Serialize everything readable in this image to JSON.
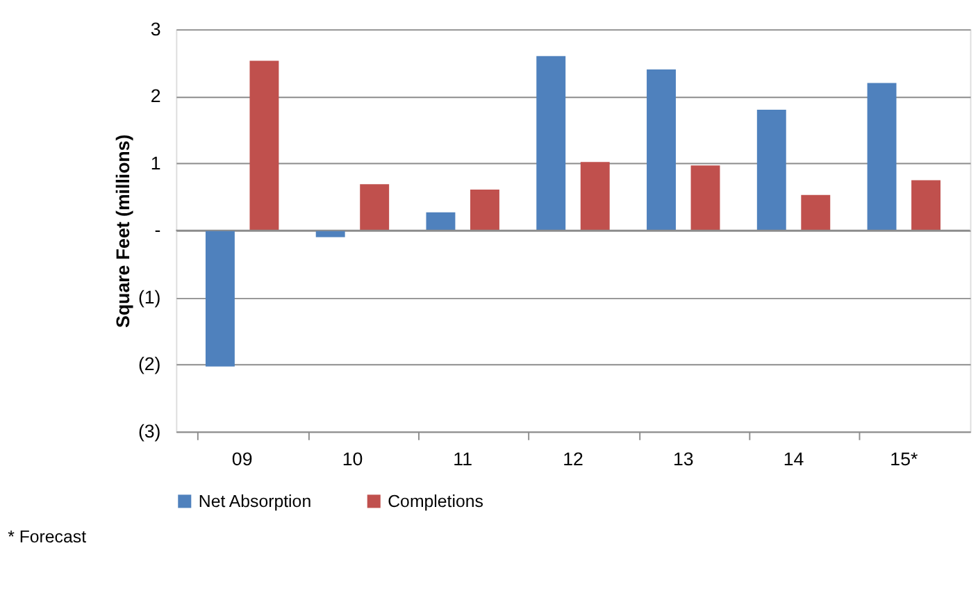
{
  "chart_data": {
    "type": "bar",
    "ylabel": "Square Feet (millions)",
    "categories": [
      "09",
      "10",
      "11",
      "12",
      "13",
      "14",
      "15*"
    ],
    "series": [
      {
        "name": "Net Absorption",
        "color": "#4f81bd",
        "values": [
          -2.03,
          -0.1,
          0.27,
          2.6,
          2.4,
          1.8,
          2.2
        ]
      },
      {
        "name": "Completions",
        "color": "#c0504d",
        "values": [
          2.53,
          0.69,
          0.61,
          1.02,
          0.97,
          0.53,
          0.75
        ]
      }
    ],
    "ylim": [
      -3,
      3
    ],
    "yticks": [
      {
        "value": -3,
        "label": "(3)"
      },
      {
        "value": -2,
        "label": "(2)"
      },
      {
        "value": -1,
        "label": "(1)"
      },
      {
        "value": 0,
        "label": "-"
      },
      1,
      2,
      3
    ],
    "grid": "y",
    "legend": "bottom",
    "annotations": [
      "* Forecast"
    ]
  }
}
